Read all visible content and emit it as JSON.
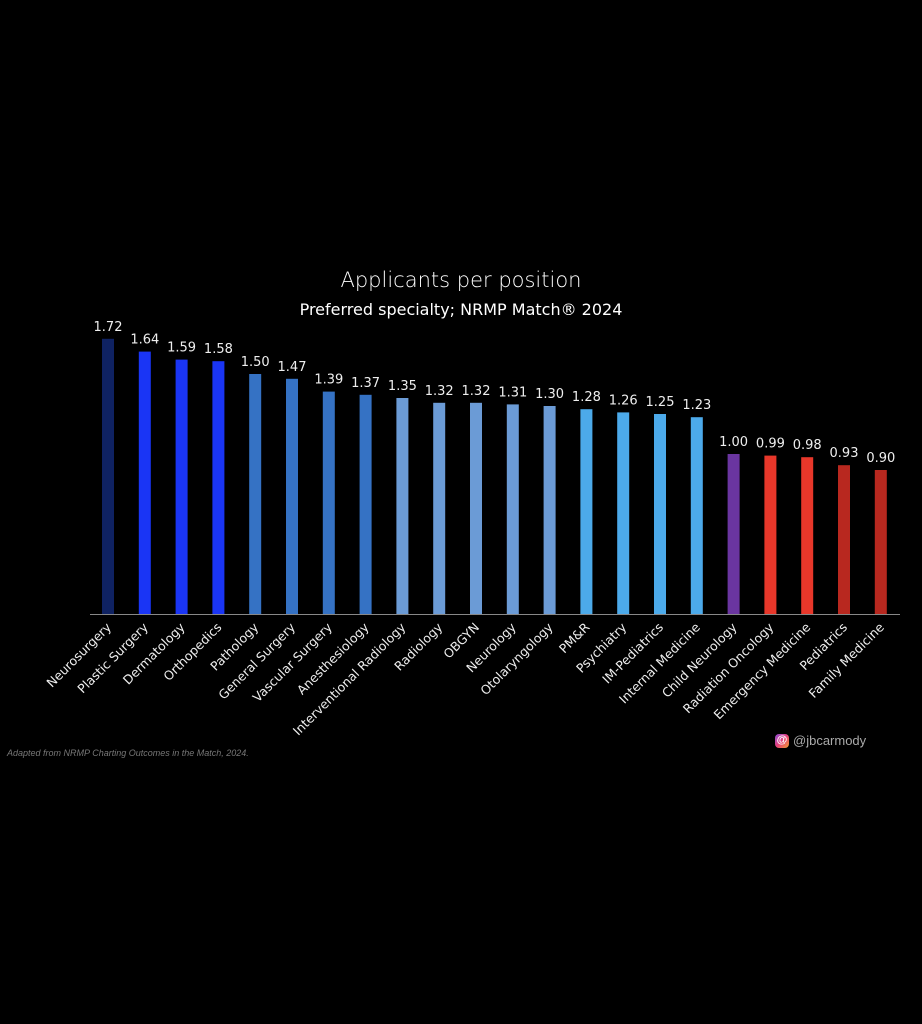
{
  "chart_data": {
    "type": "bar",
    "title": "Applicants per position",
    "subtitle": "Preferred specialty; NRMP Match® 2024",
    "xlabel": "",
    "ylabel": "",
    "ylim": [
      0,
      1.8
    ],
    "grid": false,
    "categories": [
      "Neurosurgery",
      "Plastic Surgery",
      "Dermatology",
      "Orthopedics",
      "Pathology",
      "General Surgery",
      "Vascular Surgery",
      "Anesthesiology",
      "Interventional Radiology",
      "Radiology",
      "OBGYN",
      "Neurology",
      "Otolaryngology",
      "PM&R",
      "Psychiatry",
      "IM-Pediatrics",
      "Internal Medicine",
      "Child Neurology",
      "Radiation Oncology",
      "Emergency Medicine",
      "Pediatrics",
      "Family Medicine"
    ],
    "values": [
      1.72,
      1.64,
      1.59,
      1.58,
      1.5,
      1.47,
      1.39,
      1.37,
      1.35,
      1.32,
      1.32,
      1.31,
      1.3,
      1.28,
      1.26,
      1.25,
      1.23,
      1.0,
      0.99,
      0.98,
      0.93,
      0.9
    ],
    "value_labels": [
      "1.72",
      "1.64",
      "1.59",
      "1.58",
      "1.50",
      "1.47",
      "1.39",
      "1.37",
      "1.35",
      "1.32",
      "1.32",
      "1.31",
      "1.30",
      "1.28",
      "1.26",
      "1.25",
      "1.23",
      "1.00",
      "0.99",
      "0.98",
      "0.93",
      "0.90"
    ],
    "colors": [
      "#0f2262",
      "#1a35f5",
      "#1a35f5",
      "#1a35f5",
      "#3572c4",
      "#3572c4",
      "#3572c4",
      "#3572c4",
      "#6b9bd6",
      "#6b9bd6",
      "#6b9bd6",
      "#6b9bd6",
      "#6b9bd6",
      "#4caaea",
      "#4caaea",
      "#4caaea",
      "#4caaea",
      "#6a35a0",
      "#e8372a",
      "#e8372a",
      "#b8281f",
      "#b8281f"
    ]
  },
  "footer": {
    "source": "Adapted from NRMP Charting Outcomes in the Match, 2024.",
    "handle": "@jbcarmody",
    "handle_icon": "threads-icon"
  }
}
